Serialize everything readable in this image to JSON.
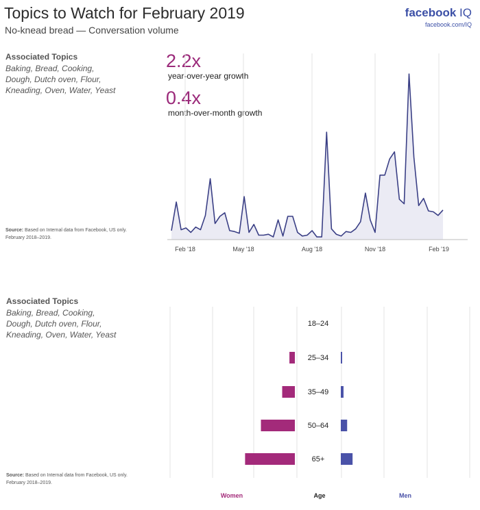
{
  "header": {
    "title": "Topics to Watch for February 2019",
    "subtitle": "No-knead bread — Conversation volume",
    "brand_name": "facebook",
    "brand_iq": "IQ",
    "brand_url": "facebook.com/IQ"
  },
  "topics": {
    "heading": "Associated Topics",
    "list": "Baking, Bread, Cooking, Dough, Dutch oven, Flour, Kneading, Oven, Water, Yeast"
  },
  "source": {
    "label": "Source:",
    "text": "Based on Internal data from Facebook, US only. February 2018–2019."
  },
  "stats": {
    "yoy_value": "2.2x",
    "yoy_label": "year-over-year growth",
    "mom_value": "0.4x",
    "mom_label": "month-over-month growth"
  },
  "colors": {
    "women": "#a32a7a",
    "men": "#4a52a8",
    "line": "#3a3f85",
    "area": "#ebebf4",
    "accent": "#9b2a7a"
  },
  "chart_data": [
    {
      "type": "area",
      "x_ticks": [
        "Feb '18",
        "May '18",
        "Aug '18",
        "Nov '18",
        "Feb '19"
      ],
      "grid": "vertical",
      "series": [
        {
          "values": [
            10,
            42,
            11,
            13,
            8,
            14,
            11,
            27,
            68,
            18,
            26,
            30,
            10,
            9,
            7,
            48,
            8,
            17,
            5,
            5,
            6,
            3,
            22,
            4,
            26,
            26,
            8,
            4,
            5,
            10,
            3,
            3,
            120,
            12,
            6,
            4,
            9,
            8,
            12,
            20,
            52,
            22,
            8,
            72,
            72,
            90,
            98,
            45,
            40,
            185,
            92,
            38,
            46,
            32,
            31,
            27,
            33
          ]
        }
      ]
    },
    {
      "type": "bar",
      "orientation": "horizontal",
      "categories": [
        "18–24",
        "25–34",
        "35–49",
        "50–64",
        "65+"
      ],
      "center_label": "Age",
      "series": [
        {
          "name": "Women",
          "values": [
            0,
            1.2,
            2.8,
            7.5,
            11.0
          ]
        },
        {
          "name": "Men",
          "values": [
            0,
            0.3,
            0.6,
            1.4,
            2.6
          ]
        }
      ]
    }
  ]
}
